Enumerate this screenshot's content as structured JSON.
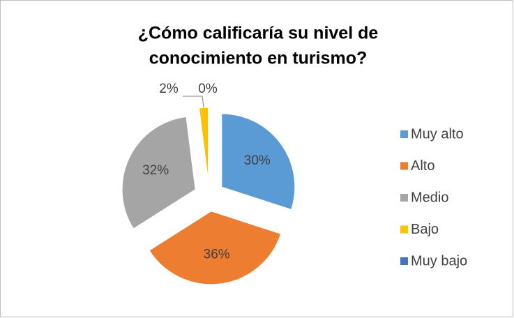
{
  "chart_data": {
    "type": "pie",
    "title": [
      "¿Cómo calificaría su nivel de",
      "conocimiento en turismo?"
    ],
    "categories": [
      "Muy alto",
      "Alto",
      "Medio",
      "Bajo",
      "Muy bajo"
    ],
    "values": [
      30,
      36,
      32,
      2,
      0
    ],
    "value_labels": [
      "30%",
      "36%",
      "32%",
      "2%",
      "0%"
    ],
    "colors": [
      "#5b9bd5",
      "#ed7d31",
      "#a5a5a5",
      "#ffc000",
      "#4472c4"
    ],
    "legend": "right"
  }
}
